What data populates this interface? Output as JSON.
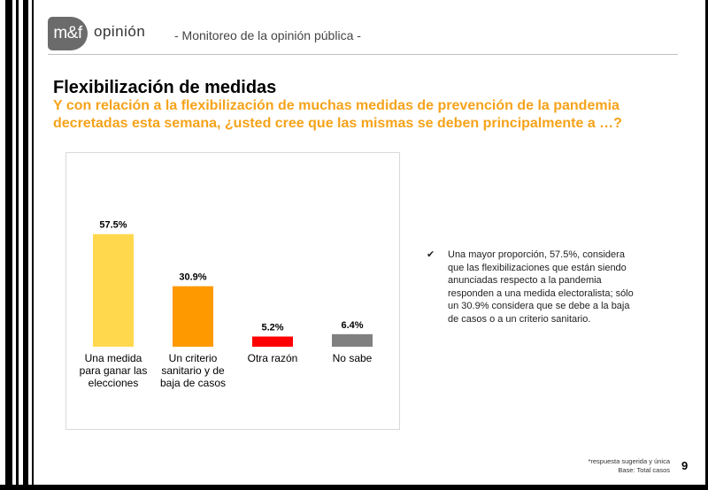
{
  "header": {
    "logo_mark": "m&f",
    "logo_word": "opinión",
    "subtitle": "- Monitoreo de la opinión pública -"
  },
  "slide": {
    "title": "Flexibilización de medidas",
    "question": "Y con relación a la flexibilización de muchas medidas de prevención de la pandemia decretadas esta semana, ¿usted cree que las mismas se deben principalmente a …?",
    "note": "Una mayor proporción, 57.5%, considera que las flexibilizaciones que están siendo anunciadas respecto a la pandemia responden a una medida electoralista; sólo un 30.9% considera que se debe a la baja de casos o a un criterio sanitario.",
    "footnote_1": "*respuesta sugerida y única",
    "footnote_2": "Base: Total casos",
    "page_number": "9"
  },
  "chart_data": {
    "type": "bar",
    "title": "",
    "xlabel": "",
    "ylabel": "",
    "ylim": [
      0,
      75
    ],
    "categories": [
      "Una medida para ganar las elecciones",
      "Un criterio sanitario y de baja de casos",
      "Otra razón",
      "No sabe"
    ],
    "category_lines": [
      [
        "Una medida",
        "para ganar las",
        "elecciones"
      ],
      [
        "Un criterio",
        "sanitario y de",
        "baja de casos"
      ],
      [
        "Otra razón"
      ],
      [
        "No sabe"
      ]
    ],
    "values": [
      57.5,
      30.9,
      5.2,
      6.4
    ],
    "labels": [
      "57.5%",
      "30.9%",
      "5.2%",
      "6.4%"
    ],
    "colors": [
      "#ffd84d",
      "#ff9900",
      "#ff0000",
      "#808080"
    ],
    "grid": false
  }
}
